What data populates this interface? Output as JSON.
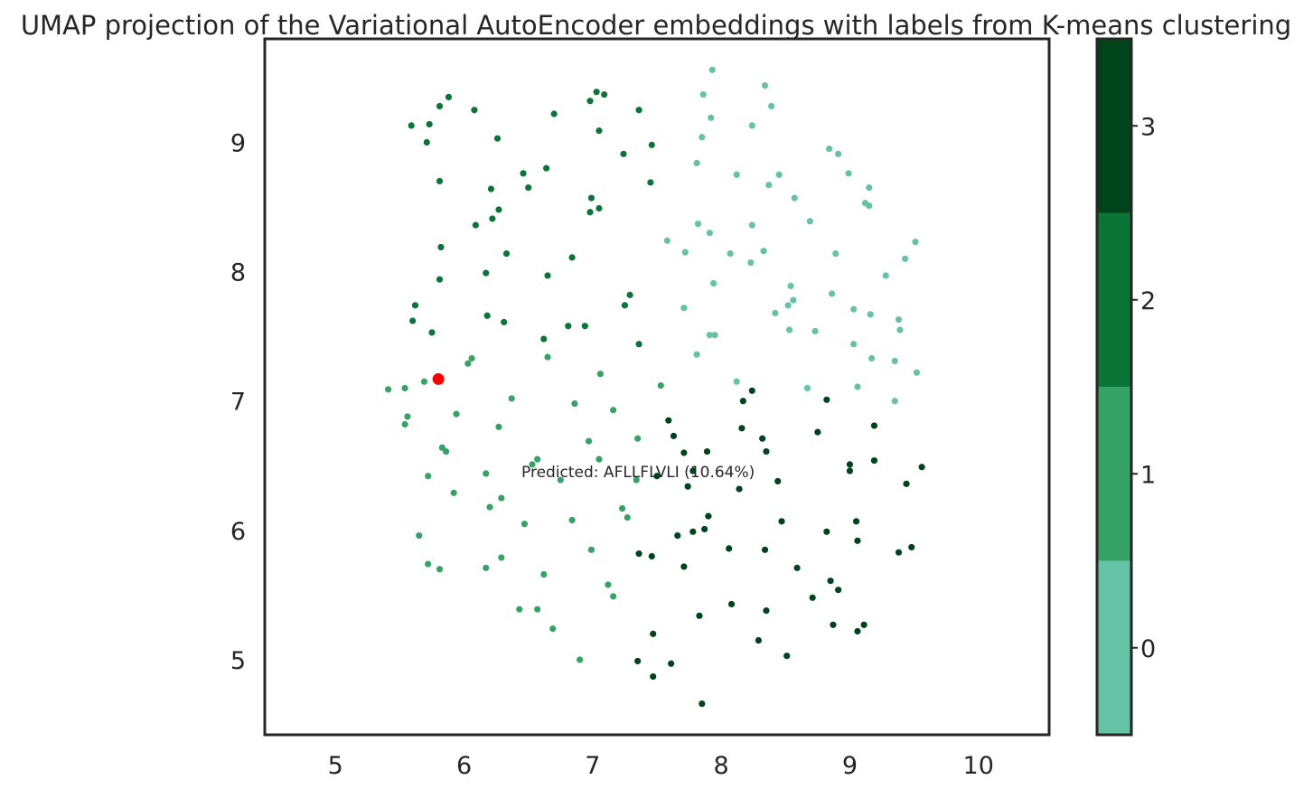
{
  "chart_data": {
    "type": "scatter",
    "title": "UMAP projection of the Variational AutoEncoder embeddings with labels from K-means clustering",
    "xlabel": "",
    "ylabel": "",
    "xlim": [
      4.45,
      10.55
    ],
    "ylim": [
      4.42,
      9.8
    ],
    "x_ticks": [
      5,
      6,
      7,
      8,
      9,
      10
    ],
    "y_ticks": [
      5,
      6,
      7,
      8,
      9
    ],
    "grid": false,
    "colorbar": {
      "ticks": [
        0,
        1,
        2,
        3
      ],
      "range": [
        -0.5,
        3.5
      ],
      "colors": [
        "#66c2a4",
        "#37a266",
        "#0d7437",
        "#00441b"
      ]
    },
    "highlight": {
      "x": 5.8,
      "y": 7.17,
      "color": "#ff0000"
    },
    "annotation": {
      "text": "Predicted: AFLLFLVLI (10.64%)",
      "x": 6.43,
      "y": 6.42
    },
    "points": [
      {
        "x": 7.93,
        "y": 9.56,
        "c": 0
      },
      {
        "x": 8.34,
        "y": 9.44,
        "c": 0
      },
      {
        "x": 7.86,
        "y": 9.37,
        "c": 0
      },
      {
        "x": 8.39,
        "y": 9.28,
        "c": 0
      },
      {
        "x": 7.92,
        "y": 9.19,
        "c": 0
      },
      {
        "x": 8.24,
        "y": 9.13,
        "c": 0
      },
      {
        "x": 7.85,
        "y": 9.04,
        "c": 0
      },
      {
        "x": 8.84,
        "y": 8.95,
        "c": 0
      },
      {
        "x": 8.91,
        "y": 8.91,
        "c": 0
      },
      {
        "x": 7.81,
        "y": 8.84,
        "c": 0
      },
      {
        "x": 8.12,
        "y": 8.75,
        "c": 0
      },
      {
        "x": 8.45,
        "y": 8.75,
        "c": 0
      },
      {
        "x": 8.99,
        "y": 8.76,
        "c": 0
      },
      {
        "x": 8.37,
        "y": 8.67,
        "c": 0
      },
      {
        "x": 9.15,
        "y": 8.65,
        "c": 0
      },
      {
        "x": 8.57,
        "y": 8.57,
        "c": 0
      },
      {
        "x": 9.12,
        "y": 8.53,
        "c": 0
      },
      {
        "x": 9.15,
        "y": 8.51,
        "c": 0
      },
      {
        "x": 7.82,
        "y": 8.37,
        "c": 0
      },
      {
        "x": 8.24,
        "y": 8.36,
        "c": 0
      },
      {
        "x": 8.69,
        "y": 8.39,
        "c": 0
      },
      {
        "x": 7.91,
        "y": 8.3,
        "c": 0
      },
      {
        "x": 7.58,
        "y": 8.24,
        "c": 0
      },
      {
        "x": 9.51,
        "y": 8.23,
        "c": 0
      },
      {
        "x": 7.72,
        "y": 8.15,
        "c": 0
      },
      {
        "x": 8.07,
        "y": 8.14,
        "c": 0
      },
      {
        "x": 8.33,
        "y": 8.16,
        "c": 0
      },
      {
        "x": 8.89,
        "y": 8.14,
        "c": 0
      },
      {
        "x": 8.23,
        "y": 8.07,
        "c": 0
      },
      {
        "x": 9.43,
        "y": 8.1,
        "c": 0
      },
      {
        "x": 9.28,
        "y": 7.97,
        "c": 0
      },
      {
        "x": 7.94,
        "y": 7.91,
        "c": 0
      },
      {
        "x": 8.54,
        "y": 7.89,
        "c": 0
      },
      {
        "x": 8.86,
        "y": 7.83,
        "c": 0
      },
      {
        "x": 8.56,
        "y": 7.78,
        "c": 0
      },
      {
        "x": 8.52,
        "y": 7.74,
        "c": 0
      },
      {
        "x": 7.71,
        "y": 7.72,
        "c": 0
      },
      {
        "x": 9.03,
        "y": 7.71,
        "c": 0
      },
      {
        "x": 8.42,
        "y": 7.68,
        "c": 0
      },
      {
        "x": 9.16,
        "y": 7.67,
        "c": 0
      },
      {
        "x": 9.38,
        "y": 7.63,
        "c": 0
      },
      {
        "x": 8.53,
        "y": 7.55,
        "c": 0
      },
      {
        "x": 8.73,
        "y": 7.54,
        "c": 0
      },
      {
        "x": 9.39,
        "y": 7.55,
        "c": 0
      },
      {
        "x": 7.91,
        "y": 7.51,
        "c": 0
      },
      {
        "x": 7.95,
        "y": 7.51,
        "c": 0
      },
      {
        "x": 9.03,
        "y": 7.44,
        "c": 0
      },
      {
        "x": 7.81,
        "y": 7.36,
        "c": 0
      },
      {
        "x": 9.17,
        "y": 7.33,
        "c": 0
      },
      {
        "x": 9.35,
        "y": 7.31,
        "c": 0
      },
      {
        "x": 9.52,
        "y": 7.22,
        "c": 0
      },
      {
        "x": 8.12,
        "y": 7.15,
        "c": 0
      },
      {
        "x": 8.67,
        "y": 7.1,
        "c": 0
      },
      {
        "x": 9.06,
        "y": 7.11,
        "c": 0
      },
      {
        "x": 9.35,
        "y": 7.0,
        "c": 0
      },
      {
        "x": 6.06,
        "y": 7.33,
        "c": 1
      },
      {
        "x": 6.03,
        "y": 7.29,
        "c": 1
      },
      {
        "x": 6.65,
        "y": 7.34,
        "c": 1
      },
      {
        "x": 7.06,
        "y": 7.21,
        "c": 1
      },
      {
        "x": 5.69,
        "y": 7.15,
        "c": 1
      },
      {
        "x": 5.41,
        "y": 7.09,
        "c": 1
      },
      {
        "x": 5.54,
        "y": 7.1,
        "c": 1
      },
      {
        "x": 7.53,
        "y": 7.12,
        "c": 1
      },
      {
        "x": 6.37,
        "y": 7.02,
        "c": 1
      },
      {
        "x": 6.86,
        "y": 6.98,
        "c": 1
      },
      {
        "x": 7.16,
        "y": 6.93,
        "c": 1
      },
      {
        "x": 5.94,
        "y": 6.9,
        "c": 1
      },
      {
        "x": 5.56,
        "y": 6.88,
        "c": 1
      },
      {
        "x": 5.54,
        "y": 6.82,
        "c": 1
      },
      {
        "x": 6.27,
        "y": 6.8,
        "c": 1
      },
      {
        "x": 7.35,
        "y": 6.71,
        "c": 1
      },
      {
        "x": 6.97,
        "y": 6.69,
        "c": 1
      },
      {
        "x": 5.83,
        "y": 6.64,
        "c": 1
      },
      {
        "x": 5.86,
        "y": 6.61,
        "c": 1
      },
      {
        "x": 6.57,
        "y": 6.55,
        "c": 1
      },
      {
        "x": 7.05,
        "y": 6.55,
        "c": 1
      },
      {
        "x": 6.53,
        "y": 6.51,
        "c": 1
      },
      {
        "x": 6.17,
        "y": 6.44,
        "c": 1
      },
      {
        "x": 5.72,
        "y": 6.42,
        "c": 1
      },
      {
        "x": 6.75,
        "y": 6.39,
        "c": 1
      },
      {
        "x": 7.34,
        "y": 6.39,
        "c": 1
      },
      {
        "x": 5.92,
        "y": 6.29,
        "c": 1
      },
      {
        "x": 6.29,
        "y": 6.25,
        "c": 1
      },
      {
        "x": 6.2,
        "y": 6.18,
        "c": 1
      },
      {
        "x": 7.23,
        "y": 6.17,
        "c": 1
      },
      {
        "x": 7.27,
        "y": 6.1,
        "c": 1
      },
      {
        "x": 6.84,
        "y": 6.08,
        "c": 1
      },
      {
        "x": 6.47,
        "y": 6.05,
        "c": 1
      },
      {
        "x": 5.65,
        "y": 5.96,
        "c": 1
      },
      {
        "x": 6.99,
        "y": 5.85,
        "c": 1
      },
      {
        "x": 6.29,
        "y": 5.79,
        "c": 1
      },
      {
        "x": 5.72,
        "y": 5.74,
        "c": 1
      },
      {
        "x": 5.81,
        "y": 5.7,
        "c": 1
      },
      {
        "x": 6.17,
        "y": 5.71,
        "c": 1
      },
      {
        "x": 6.62,
        "y": 5.66,
        "c": 1
      },
      {
        "x": 7.12,
        "y": 5.58,
        "c": 1
      },
      {
        "x": 7.16,
        "y": 5.49,
        "c": 1
      },
      {
        "x": 6.43,
        "y": 5.39,
        "c": 1
      },
      {
        "x": 6.57,
        "y": 5.39,
        "c": 1
      },
      {
        "x": 6.69,
        "y": 5.24,
        "c": 1
      },
      {
        "x": 6.9,
        "y": 5.0,
        "c": 1
      },
      {
        "x": 7.03,
        "y": 9.39,
        "c": 2
      },
      {
        "x": 7.09,
        "y": 9.37,
        "c": 2
      },
      {
        "x": 5.88,
        "y": 9.35,
        "c": 2
      },
      {
        "x": 6.98,
        "y": 9.32,
        "c": 2
      },
      {
        "x": 5.81,
        "y": 9.28,
        "c": 2
      },
      {
        "x": 6.08,
        "y": 9.25,
        "c": 2
      },
      {
        "x": 7.36,
        "y": 9.25,
        "c": 2
      },
      {
        "x": 6.7,
        "y": 9.22,
        "c": 2
      },
      {
        "x": 5.59,
        "y": 9.13,
        "c": 2
      },
      {
        "x": 5.73,
        "y": 9.14,
        "c": 2
      },
      {
        "x": 7.05,
        "y": 9.09,
        "c": 2
      },
      {
        "x": 6.26,
        "y": 9.03,
        "c": 2
      },
      {
        "x": 5.71,
        "y": 9.0,
        "c": 2
      },
      {
        "x": 7.46,
        "y": 8.98,
        "c": 2
      },
      {
        "x": 7.24,
        "y": 8.91,
        "c": 2
      },
      {
        "x": 6.64,
        "y": 8.8,
        "c": 2
      },
      {
        "x": 6.46,
        "y": 8.76,
        "c": 2
      },
      {
        "x": 5.81,
        "y": 8.7,
        "c": 2
      },
      {
        "x": 7.45,
        "y": 8.69,
        "c": 2
      },
      {
        "x": 6.5,
        "y": 8.65,
        "c": 2
      },
      {
        "x": 6.21,
        "y": 8.64,
        "c": 2
      },
      {
        "x": 6.99,
        "y": 8.57,
        "c": 2
      },
      {
        "x": 7.05,
        "y": 8.49,
        "c": 2
      },
      {
        "x": 6.98,
        "y": 8.46,
        "c": 2
      },
      {
        "x": 6.27,
        "y": 8.48,
        "c": 2
      },
      {
        "x": 6.22,
        "y": 8.41,
        "c": 2
      },
      {
        "x": 6.09,
        "y": 8.36,
        "c": 2
      },
      {
        "x": 5.82,
        "y": 8.19,
        "c": 2
      },
      {
        "x": 6.33,
        "y": 8.14,
        "c": 2
      },
      {
        "x": 6.84,
        "y": 8.11,
        "c": 2
      },
      {
        "x": 6.17,
        "y": 7.99,
        "c": 2
      },
      {
        "x": 6.65,
        "y": 7.97,
        "c": 2
      },
      {
        "x": 5.81,
        "y": 7.94,
        "c": 2
      },
      {
        "x": 7.29,
        "y": 7.82,
        "c": 2
      },
      {
        "x": 7.25,
        "y": 7.74,
        "c": 2
      },
      {
        "x": 5.62,
        "y": 7.74,
        "c": 2
      },
      {
        "x": 6.18,
        "y": 7.66,
        "c": 2
      },
      {
        "x": 5.6,
        "y": 7.62,
        "c": 2
      },
      {
        "x": 6.31,
        "y": 7.61,
        "c": 2
      },
      {
        "x": 6.81,
        "y": 7.58,
        "c": 2
      },
      {
        "x": 6.94,
        "y": 7.58,
        "c": 2
      },
      {
        "x": 5.75,
        "y": 7.53,
        "c": 2
      },
      {
        "x": 6.62,
        "y": 7.48,
        "c": 2
      },
      {
        "x": 7.36,
        "y": 7.44,
        "c": 2
      },
      {
        "x": 8.24,
        "y": 7.08,
        "c": 3
      },
      {
        "x": 8.17,
        "y": 7.0,
        "c": 3
      },
      {
        "x": 8.82,
        "y": 7.01,
        "c": 3
      },
      {
        "x": 7.59,
        "y": 6.85,
        "c": 3
      },
      {
        "x": 9.19,
        "y": 6.81,
        "c": 3
      },
      {
        "x": 8.16,
        "y": 6.79,
        "c": 3
      },
      {
        "x": 8.75,
        "y": 6.76,
        "c": 3
      },
      {
        "x": 7.63,
        "y": 6.73,
        "c": 3
      },
      {
        "x": 8.32,
        "y": 6.71,
        "c": 3
      },
      {
        "x": 7.71,
        "y": 6.6,
        "c": 3
      },
      {
        "x": 7.89,
        "y": 6.61,
        "c": 3
      },
      {
        "x": 8.35,
        "y": 6.61,
        "c": 3
      },
      {
        "x": 9.19,
        "y": 6.54,
        "c": 3
      },
      {
        "x": 9.0,
        "y": 6.51,
        "c": 3
      },
      {
        "x": 9.56,
        "y": 6.49,
        "c": 3
      },
      {
        "x": 7.78,
        "y": 6.46,
        "c": 3
      },
      {
        "x": 9.0,
        "y": 6.46,
        "c": 3
      },
      {
        "x": 7.5,
        "y": 6.42,
        "c": 3
      },
      {
        "x": 8.44,
        "y": 6.38,
        "c": 3
      },
      {
        "x": 9.44,
        "y": 6.36,
        "c": 3
      },
      {
        "x": 7.74,
        "y": 6.34,
        "c": 3
      },
      {
        "x": 8.14,
        "y": 6.32,
        "c": 3
      },
      {
        "x": 7.9,
        "y": 6.11,
        "c": 3
      },
      {
        "x": 8.47,
        "y": 6.07,
        "c": 3
      },
      {
        "x": 9.05,
        "y": 6.07,
        "c": 3
      },
      {
        "x": 7.87,
        "y": 6.01,
        "c": 3
      },
      {
        "x": 7.78,
        "y": 5.99,
        "c": 3
      },
      {
        "x": 8.82,
        "y": 5.99,
        "c": 3
      },
      {
        "x": 7.66,
        "y": 5.96,
        "c": 3
      },
      {
        "x": 9.06,
        "y": 5.92,
        "c": 3
      },
      {
        "x": 9.48,
        "y": 5.87,
        "c": 3
      },
      {
        "x": 8.06,
        "y": 5.86,
        "c": 3
      },
      {
        "x": 8.34,
        "y": 5.85,
        "c": 3
      },
      {
        "x": 9.38,
        "y": 5.83,
        "c": 3
      },
      {
        "x": 7.36,
        "y": 5.82,
        "c": 3
      },
      {
        "x": 7.46,
        "y": 5.8,
        "c": 3
      },
      {
        "x": 7.71,
        "y": 5.72,
        "c": 3
      },
      {
        "x": 8.59,
        "y": 5.71,
        "c": 3
      },
      {
        "x": 8.85,
        "y": 5.61,
        "c": 3
      },
      {
        "x": 8.91,
        "y": 5.54,
        "c": 3
      },
      {
        "x": 8.71,
        "y": 5.48,
        "c": 3
      },
      {
        "x": 8.08,
        "y": 5.43,
        "c": 3
      },
      {
        "x": 8.35,
        "y": 5.38,
        "c": 3
      },
      {
        "x": 7.83,
        "y": 5.34,
        "c": 3
      },
      {
        "x": 8.87,
        "y": 5.27,
        "c": 3
      },
      {
        "x": 9.11,
        "y": 5.27,
        "c": 3
      },
      {
        "x": 9.06,
        "y": 5.22,
        "c": 3
      },
      {
        "x": 7.47,
        "y": 5.2,
        "c": 3
      },
      {
        "x": 8.29,
        "y": 5.15,
        "c": 3
      },
      {
        "x": 8.51,
        "y": 5.03,
        "c": 3
      },
      {
        "x": 7.35,
        "y": 4.99,
        "c": 3
      },
      {
        "x": 7.61,
        "y": 4.97,
        "c": 3
      },
      {
        "x": 7.47,
        "y": 4.87,
        "c": 3
      },
      {
        "x": 7.85,
        "y": 4.66,
        "c": 3
      }
    ]
  }
}
